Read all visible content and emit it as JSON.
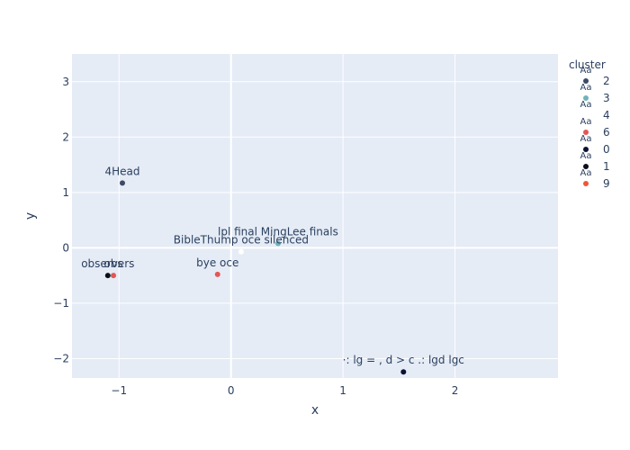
{
  "chart_data": {
    "type": "scatter",
    "xlabel": "x",
    "ylabel": "y",
    "xlim": [
      -1.42,
      2.92
    ],
    "ylim": [
      -2.35,
      3.5
    ],
    "xticks": [
      -1,
      0,
      1,
      2
    ],
    "yticks": [
      -2,
      -1,
      0,
      1,
      2,
      3
    ],
    "tick_labels_x": [
      "−1",
      "0",
      "1",
      "2"
    ],
    "tick_labels_y": [
      "−2",
      "−1",
      "0",
      "1",
      "2",
      "3"
    ],
    "grid": true,
    "legend": {
      "title": "cluster",
      "placement": "right",
      "marker_text": "Aa"
    },
    "series": [
      {
        "name": "2",
        "color": "#3d4a66",
        "points": [
          {
            "x": -0.97,
            "y": 1.17,
            "label": "4Head"
          }
        ]
      },
      {
        "name": "3",
        "color": "#6fb3b8",
        "points": [
          {
            "x": 0.42,
            "y": 0.08,
            "label": "lpl final MingLee finals"
          }
        ]
      },
      {
        "name": "4",
        "color": "#ffffff",
        "points": [
          {
            "x": 0.09,
            "y": -0.07,
            "label": "BibleThump oce silenced"
          }
        ]
      },
      {
        "name": "6",
        "color": "#e45756",
        "points": [
          {
            "x": -0.12,
            "y": -0.48,
            "label": "bye oce"
          },
          {
            "x": -1.05,
            "y": -0.5,
            "label": "obs"
          }
        ]
      },
      {
        "name": "0",
        "color": "#0b1232",
        "points": [
          {
            "x": 1.54,
            "y": -2.24,
            "label": "·: lg =  ,  d > c .: lgd lgc"
          }
        ]
      },
      {
        "name": "1",
        "color": "#0b0f1a",
        "points": [
          {
            "x": -1.1,
            "y": -0.5,
            "label": "observers"
          }
        ]
      },
      {
        "name": "9",
        "color": "#ef553b",
        "points": []
      }
    ]
  }
}
